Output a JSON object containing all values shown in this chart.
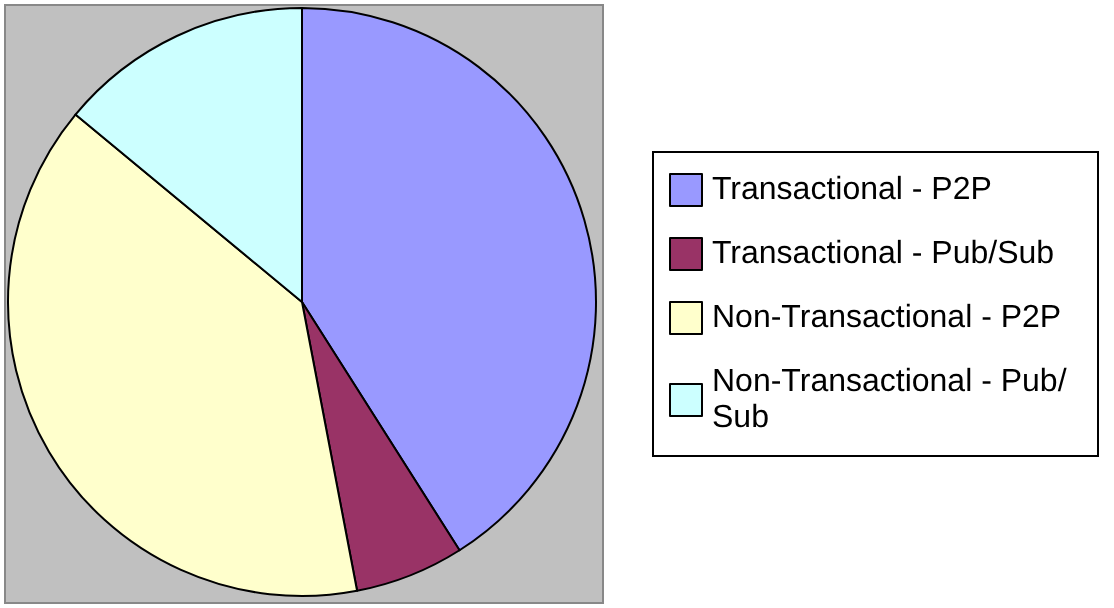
{
  "chart_data": {
    "type": "pie",
    "categories": [
      "Transactional - P2P",
      "Transactional - Pub/Sub",
      "Non-Transactional - P2P",
      "Non-Transactional - Pub/Sub"
    ],
    "values": [
      41,
      6,
      39,
      14
    ],
    "colors": [
      "#9999ff",
      "#993366",
      "#ffffcc",
      "#ccffff"
    ],
    "legend": "right"
  }
}
